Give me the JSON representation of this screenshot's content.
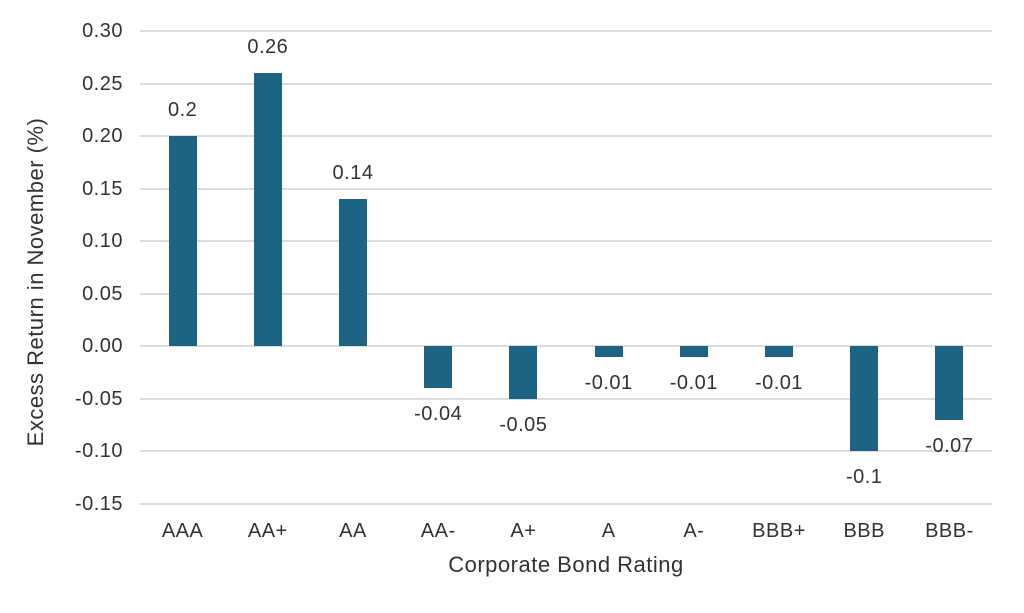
{
  "chart_data": {
    "type": "bar",
    "title": "",
    "categories": [
      "AAA",
      "AA+",
      "AA",
      "AA-",
      "A+",
      "A",
      "A-",
      "BBB+",
      "BBB",
      "BBB-"
    ],
    "values": [
      0.2,
      0.26,
      0.14,
      -0.04,
      -0.05,
      -0.01,
      -0.01,
      -0.01,
      -0.1,
      -0.07
    ],
    "value_labels": [
      "0.2",
      "0.26",
      "0.14",
      "-0.04",
      "-0.05",
      "-0.01",
      "-0.01",
      "-0.01",
      "-0.1",
      "-0.07"
    ],
    "xlabel": "Corporate Bond Rating",
    "ylabel": "Excess Return in November  (%)",
    "ylim": [
      -0.15,
      0.3
    ],
    "ytick_step": 0.05,
    "ytick_labels": [
      "0.30",
      "0.25",
      "0.20",
      "0.15",
      "0.10",
      "0.05",
      "0.00",
      "-0.05",
      "-0.10",
      "-0.15"
    ],
    "grid": true,
    "legend": false,
    "colors": {
      "bar": "#1c6384",
      "gridline": "#dcdcdc",
      "text": "#333333",
      "background": "#ffffff"
    }
  }
}
